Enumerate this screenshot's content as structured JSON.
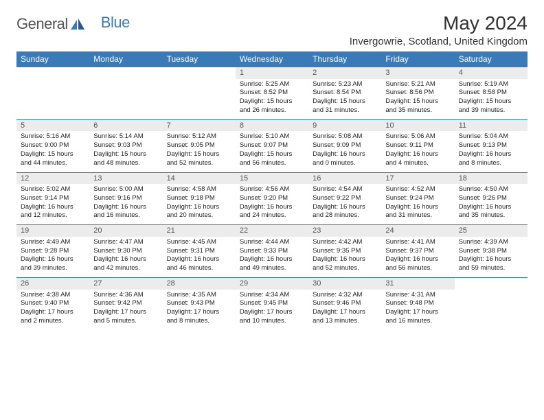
{
  "logo": {
    "part1": "General",
    "part2": "Blue"
  },
  "title": "May 2024",
  "location": "Invergowrie, Scotland, United Kingdom",
  "colors": {
    "header_bg": "#3a7ab8",
    "daynum_bg": "#ececec",
    "text": "#222222"
  },
  "day_headers": [
    "Sunday",
    "Monday",
    "Tuesday",
    "Wednesday",
    "Thursday",
    "Friday",
    "Saturday"
  ],
  "weeks": [
    [
      null,
      null,
      null,
      {
        "n": "1",
        "sr": "Sunrise: 5:25 AM",
        "ss": "Sunset: 8:52 PM",
        "dl1": "Daylight: 15 hours",
        "dl2": "and 26 minutes."
      },
      {
        "n": "2",
        "sr": "Sunrise: 5:23 AM",
        "ss": "Sunset: 8:54 PM",
        "dl1": "Daylight: 15 hours",
        "dl2": "and 31 minutes."
      },
      {
        "n": "3",
        "sr": "Sunrise: 5:21 AM",
        "ss": "Sunset: 8:56 PM",
        "dl1": "Daylight: 15 hours",
        "dl2": "and 35 minutes."
      },
      {
        "n": "4",
        "sr": "Sunrise: 5:19 AM",
        "ss": "Sunset: 8:58 PM",
        "dl1": "Daylight: 15 hours",
        "dl2": "and 39 minutes."
      }
    ],
    [
      {
        "n": "5",
        "sr": "Sunrise: 5:16 AM",
        "ss": "Sunset: 9:00 PM",
        "dl1": "Daylight: 15 hours",
        "dl2": "and 44 minutes."
      },
      {
        "n": "6",
        "sr": "Sunrise: 5:14 AM",
        "ss": "Sunset: 9:03 PM",
        "dl1": "Daylight: 15 hours",
        "dl2": "and 48 minutes."
      },
      {
        "n": "7",
        "sr": "Sunrise: 5:12 AM",
        "ss": "Sunset: 9:05 PM",
        "dl1": "Daylight: 15 hours",
        "dl2": "and 52 minutes."
      },
      {
        "n": "8",
        "sr": "Sunrise: 5:10 AM",
        "ss": "Sunset: 9:07 PM",
        "dl1": "Daylight: 15 hours",
        "dl2": "and 56 minutes."
      },
      {
        "n": "9",
        "sr": "Sunrise: 5:08 AM",
        "ss": "Sunset: 9:09 PM",
        "dl1": "Daylight: 16 hours",
        "dl2": "and 0 minutes."
      },
      {
        "n": "10",
        "sr": "Sunrise: 5:06 AM",
        "ss": "Sunset: 9:11 PM",
        "dl1": "Daylight: 16 hours",
        "dl2": "and 4 minutes."
      },
      {
        "n": "11",
        "sr": "Sunrise: 5:04 AM",
        "ss": "Sunset: 9:13 PM",
        "dl1": "Daylight: 16 hours",
        "dl2": "and 8 minutes."
      }
    ],
    [
      {
        "n": "12",
        "sr": "Sunrise: 5:02 AM",
        "ss": "Sunset: 9:14 PM",
        "dl1": "Daylight: 16 hours",
        "dl2": "and 12 minutes."
      },
      {
        "n": "13",
        "sr": "Sunrise: 5:00 AM",
        "ss": "Sunset: 9:16 PM",
        "dl1": "Daylight: 16 hours",
        "dl2": "and 16 minutes."
      },
      {
        "n": "14",
        "sr": "Sunrise: 4:58 AM",
        "ss": "Sunset: 9:18 PM",
        "dl1": "Daylight: 16 hours",
        "dl2": "and 20 minutes."
      },
      {
        "n": "15",
        "sr": "Sunrise: 4:56 AM",
        "ss": "Sunset: 9:20 PM",
        "dl1": "Daylight: 16 hours",
        "dl2": "and 24 minutes."
      },
      {
        "n": "16",
        "sr": "Sunrise: 4:54 AM",
        "ss": "Sunset: 9:22 PM",
        "dl1": "Daylight: 16 hours",
        "dl2": "and 28 minutes."
      },
      {
        "n": "17",
        "sr": "Sunrise: 4:52 AM",
        "ss": "Sunset: 9:24 PM",
        "dl1": "Daylight: 16 hours",
        "dl2": "and 31 minutes."
      },
      {
        "n": "18",
        "sr": "Sunrise: 4:50 AM",
        "ss": "Sunset: 9:26 PM",
        "dl1": "Daylight: 16 hours",
        "dl2": "and 35 minutes."
      }
    ],
    [
      {
        "n": "19",
        "sr": "Sunrise: 4:49 AM",
        "ss": "Sunset: 9:28 PM",
        "dl1": "Daylight: 16 hours",
        "dl2": "and 39 minutes."
      },
      {
        "n": "20",
        "sr": "Sunrise: 4:47 AM",
        "ss": "Sunset: 9:30 PM",
        "dl1": "Daylight: 16 hours",
        "dl2": "and 42 minutes."
      },
      {
        "n": "21",
        "sr": "Sunrise: 4:45 AM",
        "ss": "Sunset: 9:31 PM",
        "dl1": "Daylight: 16 hours",
        "dl2": "and 46 minutes."
      },
      {
        "n": "22",
        "sr": "Sunrise: 4:44 AM",
        "ss": "Sunset: 9:33 PM",
        "dl1": "Daylight: 16 hours",
        "dl2": "and 49 minutes."
      },
      {
        "n": "23",
        "sr": "Sunrise: 4:42 AM",
        "ss": "Sunset: 9:35 PM",
        "dl1": "Daylight: 16 hours",
        "dl2": "and 52 minutes."
      },
      {
        "n": "24",
        "sr": "Sunrise: 4:41 AM",
        "ss": "Sunset: 9:37 PM",
        "dl1": "Daylight: 16 hours",
        "dl2": "and 56 minutes."
      },
      {
        "n": "25",
        "sr": "Sunrise: 4:39 AM",
        "ss": "Sunset: 9:38 PM",
        "dl1": "Daylight: 16 hours",
        "dl2": "and 59 minutes."
      }
    ],
    [
      {
        "n": "26",
        "sr": "Sunrise: 4:38 AM",
        "ss": "Sunset: 9:40 PM",
        "dl1": "Daylight: 17 hours",
        "dl2": "and 2 minutes."
      },
      {
        "n": "27",
        "sr": "Sunrise: 4:36 AM",
        "ss": "Sunset: 9:42 PM",
        "dl1": "Daylight: 17 hours",
        "dl2": "and 5 minutes."
      },
      {
        "n": "28",
        "sr": "Sunrise: 4:35 AM",
        "ss": "Sunset: 9:43 PM",
        "dl1": "Daylight: 17 hours",
        "dl2": "and 8 minutes."
      },
      {
        "n": "29",
        "sr": "Sunrise: 4:34 AM",
        "ss": "Sunset: 9:45 PM",
        "dl1": "Daylight: 17 hours",
        "dl2": "and 10 minutes."
      },
      {
        "n": "30",
        "sr": "Sunrise: 4:32 AM",
        "ss": "Sunset: 9:46 PM",
        "dl1": "Daylight: 17 hours",
        "dl2": "and 13 minutes."
      },
      {
        "n": "31",
        "sr": "Sunrise: 4:31 AM",
        "ss": "Sunset: 9:48 PM",
        "dl1": "Daylight: 17 hours",
        "dl2": "and 16 minutes."
      },
      null
    ]
  ]
}
